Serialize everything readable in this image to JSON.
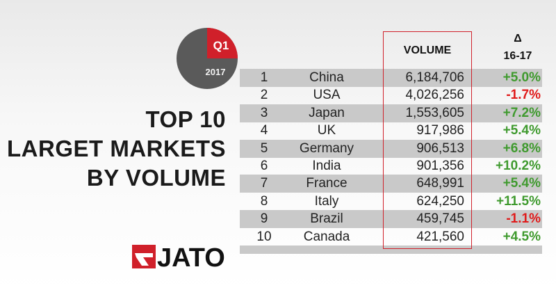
{
  "badge": {
    "quarter": "Q1",
    "year": "2017"
  },
  "title": [
    "TOP 10",
    "LARGET MARKETS",
    "BY VOLUME"
  ],
  "logo": "JATO",
  "table": {
    "header": {
      "volume": "VOLUME",
      "change_symbol": "Δ",
      "change_period": "16-17"
    },
    "positive_color": "#3f9a2e",
    "negative_color": "#e01b1b",
    "rows": [
      [
        "1",
        "China",
        "6,184,706",
        "+5.0%"
      ],
      [
        "2",
        "USA",
        "4,026,256",
        "-1.7%"
      ],
      [
        "3",
        "Japan",
        "1,553,605",
        "+7.2%"
      ],
      [
        "4",
        "UK",
        "917,986",
        "+5.4%"
      ],
      [
        "5",
        "Germany",
        "906,513",
        "+6.8%"
      ],
      [
        "6",
        "India",
        "901,356",
        "+10.2%"
      ],
      [
        "7",
        "France",
        "648,991",
        "+5.4%"
      ],
      [
        "8",
        "Italy",
        "624,250",
        "+11.5%"
      ],
      [
        "9",
        "Brazil",
        "459,745",
        "-1.1%"
      ],
      [
        "10",
        "Canada",
        "421,560",
        "+4.5%"
      ]
    ]
  }
}
